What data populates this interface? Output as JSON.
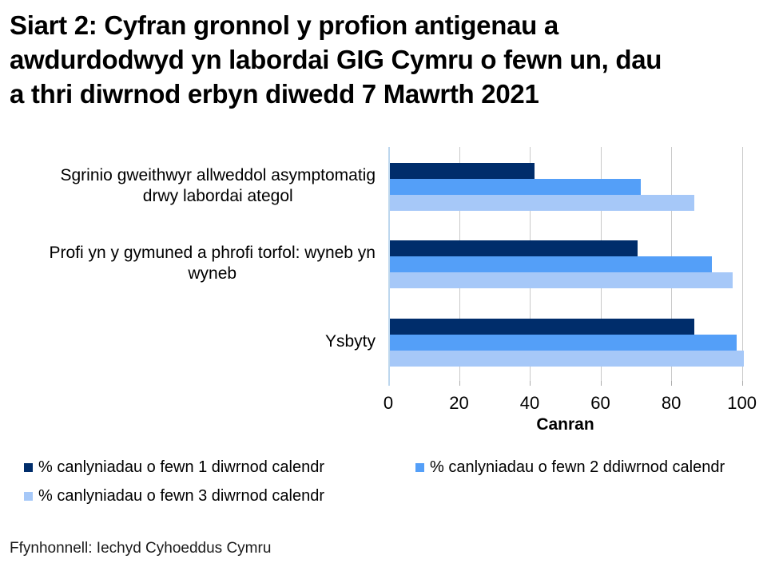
{
  "header": {
    "title_lines": [
      "Siart 2: Cyfran gronnol y profion antigenau a",
      "awdurdodwyd yn labordai GIG Cymru o fewn un, dau",
      "a thri diwrnod erbyn diwedd 7 Mawrth 2021"
    ]
  },
  "chart_data": {
    "type": "bar",
    "orientation": "horizontal",
    "title": "Siart 2: Cyfran gronnol y profion antigenau a awdurdodwyd yn labordai GIG Cymru o fewn un, dau a thri diwrnod erbyn diwedd 7 Mawrth 2021",
    "categories": [
      "Sgrinio gweithwyr allweddol asymptomatig drwy labordai ategol",
      "Profi yn y gymuned a phrofi torfol: wyneb yn wyneb",
      "Ysbyty"
    ],
    "category_label_lines": [
      [
        "Sgrinio gweithwyr allweddol asymptomatig",
        "drwy labordai ategol"
      ],
      [
        "Profi yn y gymuned a phrofi torfol: wyneb yn",
        "wyneb"
      ],
      [
        "Ysbyty"
      ]
    ],
    "series": [
      {
        "name": "% canlyniadau o fewn 1 diwrnod calendr",
        "color": "#002D6B",
        "values": [
          41,
          70,
          86
        ]
      },
      {
        "name": "% canlyniadau o fewn 2 ddiwrnod calendr",
        "color": "#549FF8",
        "values": [
          71,
          91,
          98
        ]
      },
      {
        "name": "% canlyniadau o fewn 3 diwrnod calendr",
        "color": "#A6C8F8",
        "values": [
          86,
          97,
          100
        ]
      }
    ],
    "xlabel": "Canran",
    "xlim": [
      0,
      100
    ],
    "xticks": [
      0,
      20,
      40,
      60,
      80,
      100
    ],
    "grid": "vertical-gridlines",
    "legend_position": "bottom-left",
    "axis_line_color": "#BDD7EE",
    "gridline_color": "#C9C9C9"
  },
  "footer": {
    "source": "Ffynhonnell: Iechyd Cyhoeddus Cymru"
  }
}
